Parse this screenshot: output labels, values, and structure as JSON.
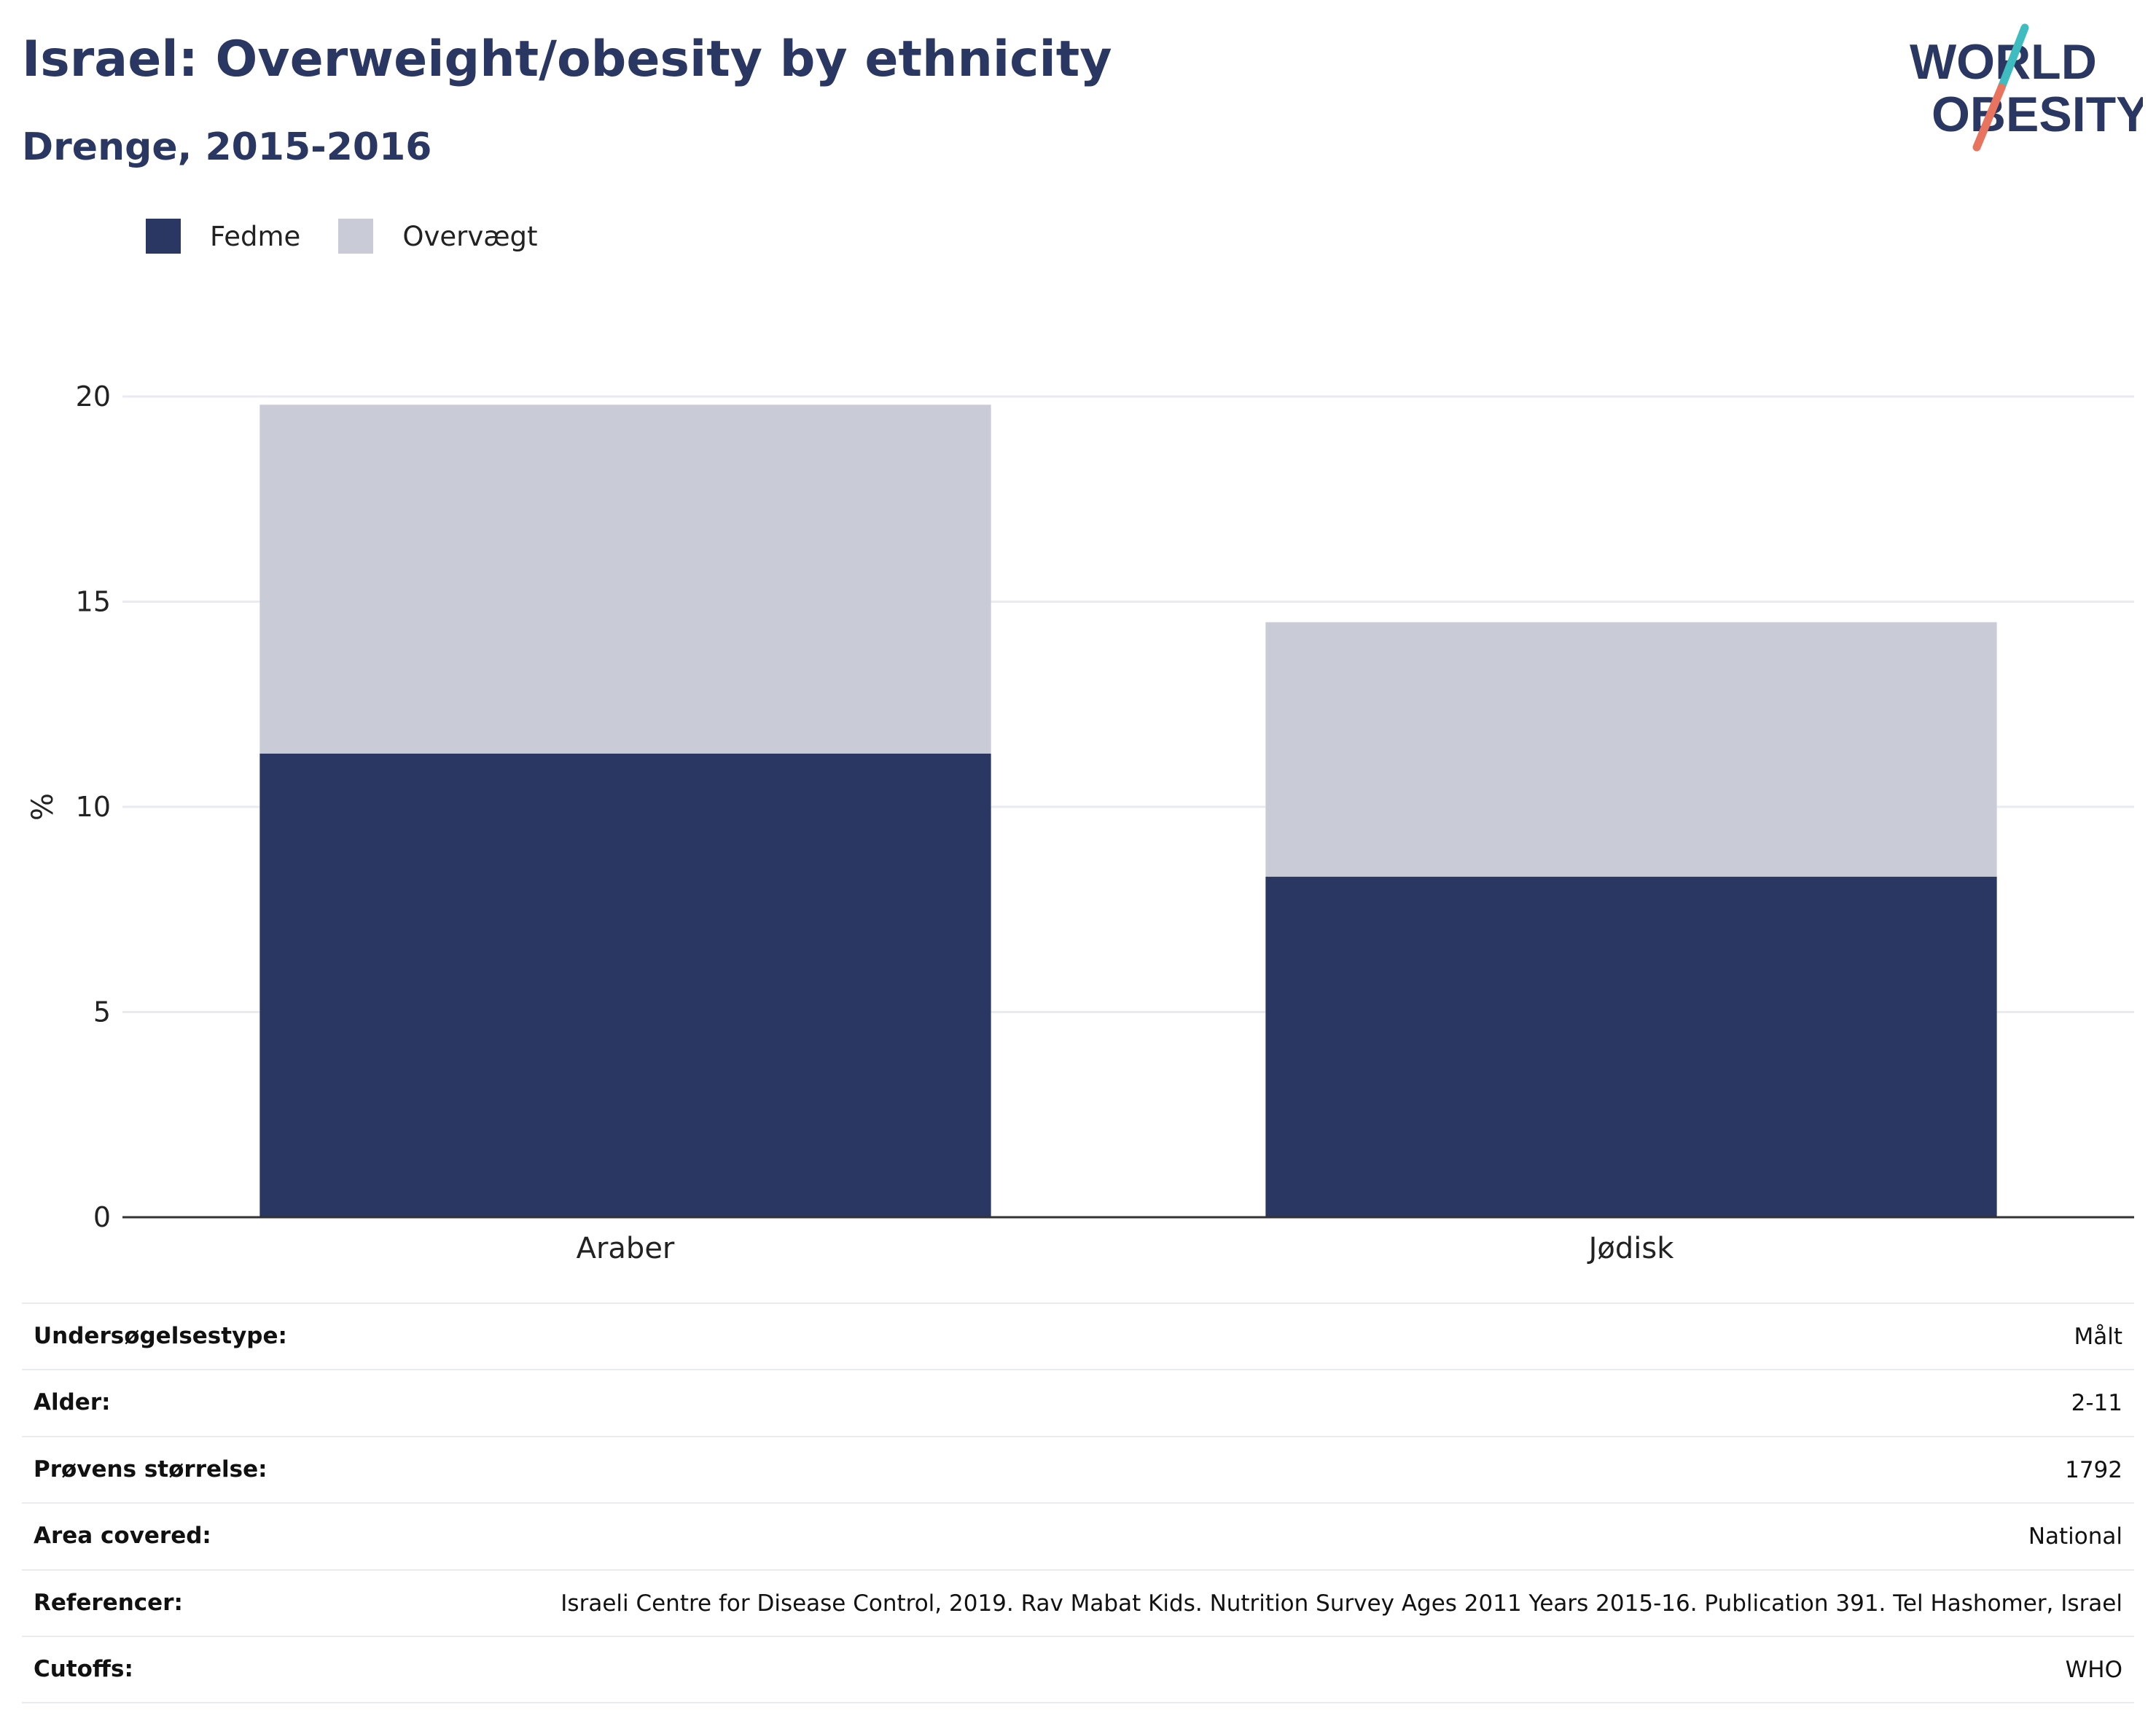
{
  "header": {
    "title": "Israel: Overweight/obesity by ethnicity",
    "subtitle": "Drenge, 2015-2016"
  },
  "logo": {
    "line1": "WORLD",
    "line2": "OBESITY"
  },
  "colors": {
    "obesity": "#2a3762",
    "overweight": "#c9ccd7",
    "title": "#2a3762",
    "logo_teal": "#3ebcbf",
    "logo_coral": "#e8735f"
  },
  "chart_data": {
    "type": "bar",
    "stacked": true,
    "categories": [
      "Araber",
      "Jødisk"
    ],
    "series": [
      {
        "name": "Fedme",
        "values": [
          11.3,
          8.3
        ]
      },
      {
        "name": "Overvægt",
        "values": [
          8.5,
          6.2
        ]
      }
    ],
    "ylabel": "%",
    "xlabel": "",
    "ylim": [
      0,
      20
    ],
    "yticks": [
      0,
      5,
      10,
      15,
      20
    ],
    "grid": true,
    "legend": "top-left"
  },
  "meta": [
    {
      "label": "Undersøgelsestype:",
      "value": "Målt"
    },
    {
      "label": "Alder:",
      "value": "2-11"
    },
    {
      "label": "Prøvens størrelse:",
      "value": "1792"
    },
    {
      "label": "Area covered:",
      "value": "National"
    },
    {
      "label": "Referencer:",
      "value": "Israeli Centre for Disease Control, 2019. Rav Mabat Kids. Nutrition Survey Ages 2011 Years 2015-16. Publication 391. Tel Hashomer, Israel"
    },
    {
      "label": "Cutoffs:",
      "value": "WHO"
    }
  ]
}
